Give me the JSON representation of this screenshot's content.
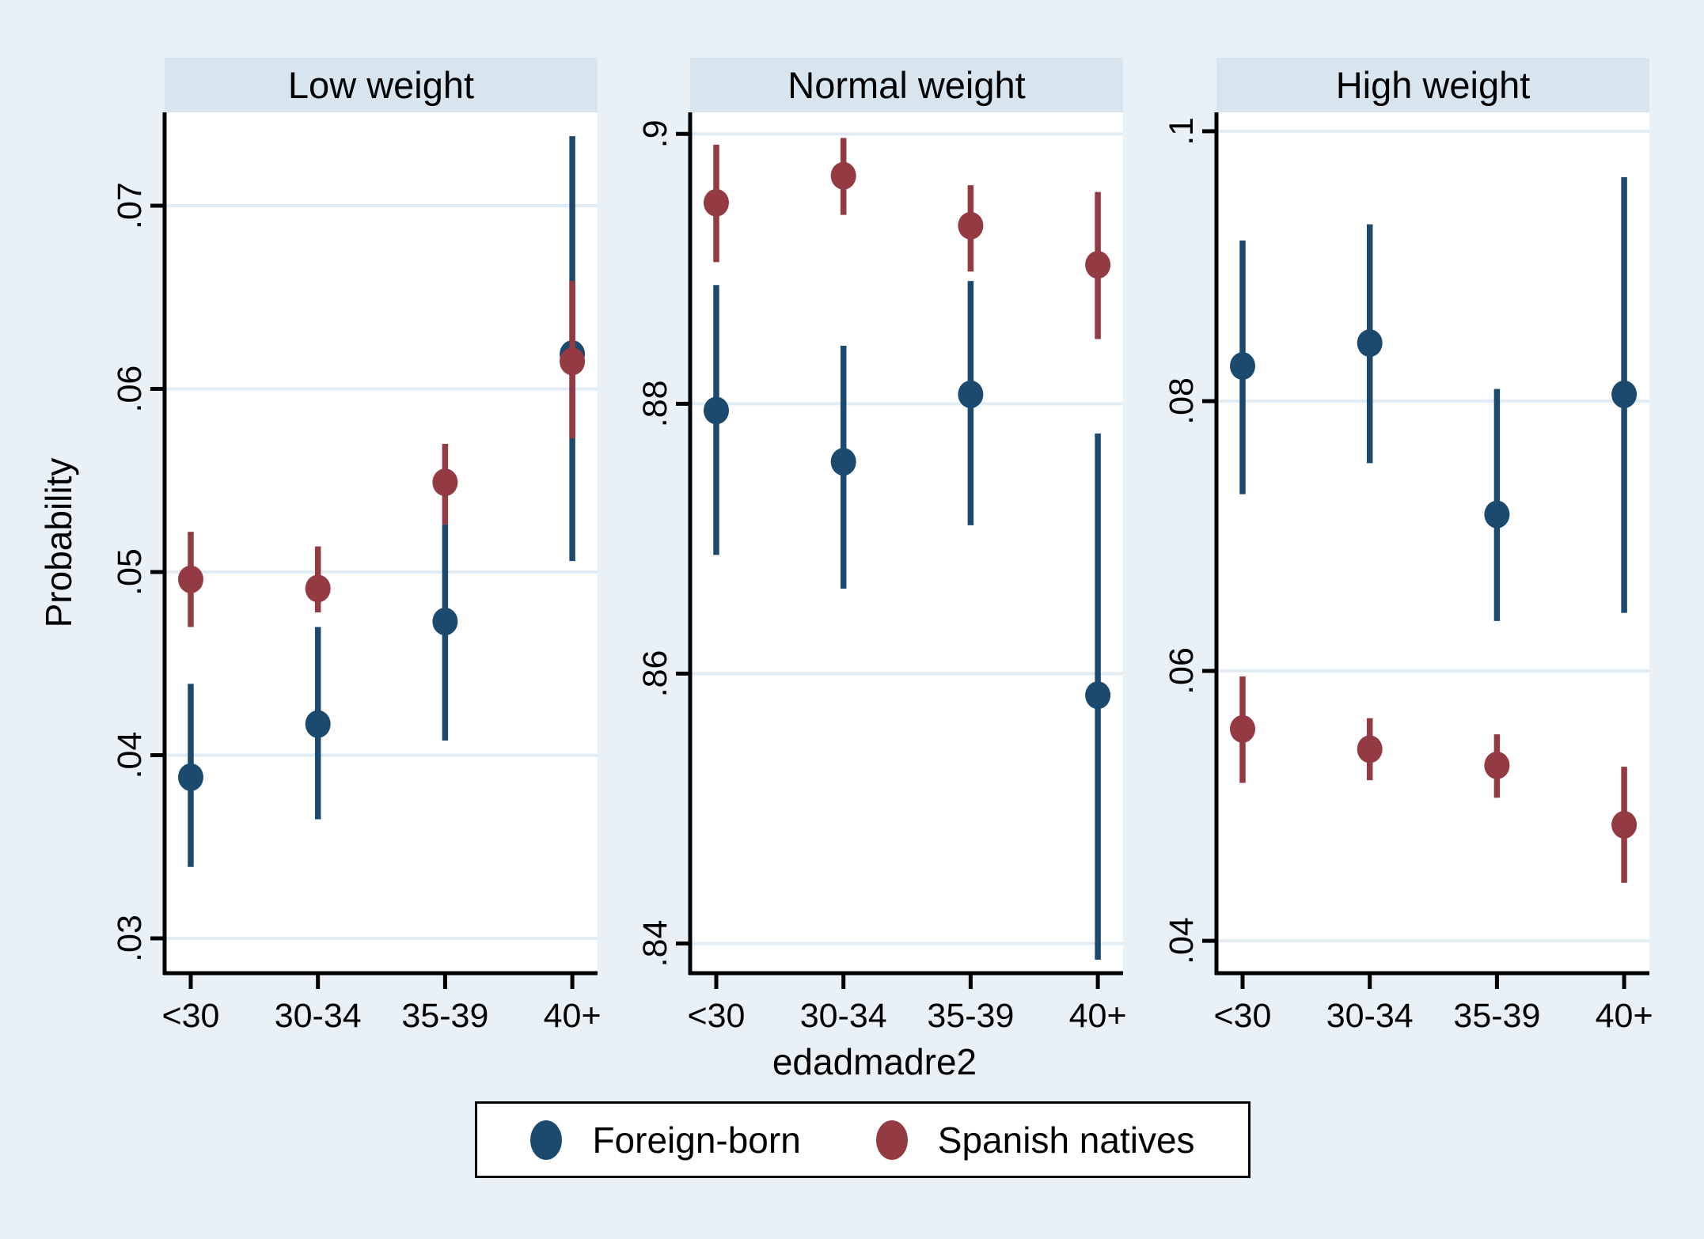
{
  "chart_data": {
    "type": "scatter",
    "subtype": "point-estimates-with-95pct-confidence-intervals",
    "source_style": "stata-by-graph",
    "xlabel": "edadmadre2",
    "ylabel": "Probability",
    "categories": [
      "<30",
      "30-34",
      "35-39",
      "40+"
    ],
    "grid": true,
    "background_color": "#e9f0f6",
    "panel_header_color": "#d8e5ef",
    "plot_background_color": "#ffffff",
    "gridline_color": "#e2ecf4",
    "legend": {
      "position": "bottom",
      "entries": [
        {
          "label": "Foreign-born",
          "color": "#1c4a6e"
        },
        {
          "label": "Spanish natives",
          "color": "#943a43"
        }
      ]
    },
    "panels": [
      {
        "title": "Low weight",
        "ylim": [
          0.0281,
          0.0751
        ],
        "yticks": [
          0.03,
          0.04,
          0.05,
          0.06,
          0.07
        ],
        "ytick_labels": [
          ".03",
          ".04",
          ".05",
          ".06",
          ".07"
        ],
        "series": [
          {
            "name": "Foreign-born",
            "color": "#1c4a6e",
            "points": [
              {
                "x": "<30",
                "y": 0.0388,
                "lo": 0.0339,
                "hi": 0.0439
              },
              {
                "x": "30-34",
                "y": 0.0417,
                "lo": 0.0365,
                "hi": 0.047
              },
              {
                "x": "35-39",
                "y": 0.0473,
                "lo": 0.0408,
                "hi": 0.0526
              },
              {
                "x": "40+",
                "y": 0.0619,
                "lo": 0.0506,
                "hi": 0.0738
              }
            ]
          },
          {
            "name": "Spanish natives",
            "color": "#943a43",
            "points": [
              {
                "x": "<30",
                "y": 0.0496,
                "lo": 0.047,
                "hi": 0.0522
              },
              {
                "x": "30-34",
                "y": 0.0491,
                "lo": 0.0478,
                "hi": 0.0514
              },
              {
                "x": "35-39",
                "y": 0.0549,
                "lo": 0.0526,
                "hi": 0.057
              },
              {
                "x": "40+",
                "y": 0.0615,
                "lo": 0.0573,
                "hi": 0.0659
              }
            ]
          }
        ]
      },
      {
        "title": "Normal weight",
        "ylim": [
          0.8378,
          0.9016
        ],
        "yticks": [
          0.84,
          0.86,
          0.88,
          0.9
        ],
        "ytick_labels": [
          ".84",
          ".86",
          ".88",
          ".9"
        ],
        "series": [
          {
            "name": "Foreign-born",
            "color": "#1c4a6e",
            "points": [
              {
                "x": "<30",
                "y": 0.8795,
                "lo": 0.8688,
                "hi": 0.8888
              },
              {
                "x": "30-34",
                "y": 0.8757,
                "lo": 0.8663,
                "hi": 0.8843
              },
              {
                "x": "35-39",
                "y": 0.8807,
                "lo": 0.871,
                "hi": 0.8891
              },
              {
                "x": "40+",
                "y": 0.8584,
                "lo": 0.8388,
                "hi": 0.8778
              }
            ]
          },
          {
            "name": "Spanish natives",
            "color": "#943a43",
            "points": [
              {
                "x": "<30",
                "y": 0.8949,
                "lo": 0.8905,
                "hi": 0.8992
              },
              {
                "x": "30-34",
                "y": 0.8969,
                "lo": 0.894,
                "hi": 0.8997
              },
              {
                "x": "35-39",
                "y": 0.8932,
                "lo": 0.8898,
                "hi": 0.8962
              },
              {
                "x": "40+",
                "y": 0.8903,
                "lo": 0.8848,
                "hi": 0.8957
              }
            ]
          }
        ]
      },
      {
        "title": "High weight",
        "ylim": [
          0.0376,
          0.1014
        ],
        "yticks": [
          0.04,
          0.06,
          0.08,
          0.1
        ],
        "ytick_labels": [
          ".04",
          ".06",
          ".08",
          ".1"
        ],
        "series": [
          {
            "name": "Foreign-born",
            "color": "#1c4a6e",
            "points": [
              {
                "x": "<30",
                "y": 0.0826,
                "lo": 0.0731,
                "hi": 0.0919
              },
              {
                "x": "30-34",
                "y": 0.0843,
                "lo": 0.0754,
                "hi": 0.0931
              },
              {
                "x": "35-39",
                "y": 0.0716,
                "lo": 0.0637,
                "hi": 0.0809
              },
              {
                "x": "40+",
                "y": 0.0805,
                "lo": 0.0643,
                "hi": 0.0966
              }
            ]
          },
          {
            "name": "Spanish natives",
            "color": "#943a43",
            "points": [
              {
                "x": "<30",
                "y": 0.0557,
                "lo": 0.0517,
                "hi": 0.0596
              },
              {
                "x": "30-34",
                "y": 0.0542,
                "lo": 0.0519,
                "hi": 0.0565
              },
              {
                "x": "35-39",
                "y": 0.053,
                "lo": 0.0506,
                "hi": 0.0553
              },
              {
                "x": "40+",
                "y": 0.0486,
                "lo": 0.0443,
                "hi": 0.0529
              }
            ]
          }
        ]
      }
    ]
  }
}
